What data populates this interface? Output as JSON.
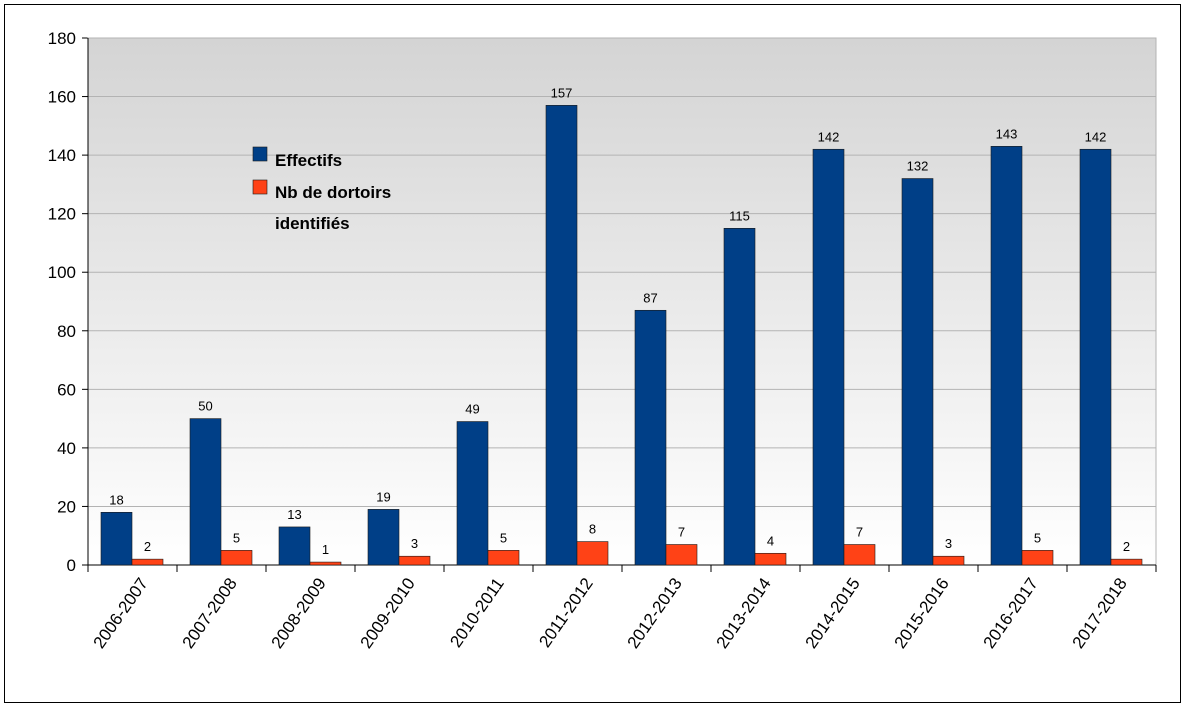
{
  "chart_data": {
    "type": "bar",
    "categories": [
      "2006-2007",
      "2007-2008",
      "2008-2009",
      "2009-2010",
      "2010-2011",
      "2011-2012",
      "2012-2013",
      "2013-2014",
      "2014-2015",
      "2015-2016",
      "2016-2017",
      "2017-2018"
    ],
    "series": [
      {
        "name": "Effectifs",
        "values": [
          18,
          50,
          13,
          19,
          49,
          157,
          87,
          115,
          142,
          132,
          143,
          142
        ],
        "color": "#003f87"
      },
      {
        "name": "Nb de dortoirs identifiés",
        "values": [
          2,
          5,
          1,
          3,
          5,
          8,
          7,
          4,
          7,
          3,
          5,
          2
        ],
        "color": "#ff4216"
      }
    ],
    "yticks": [
      0,
      20,
      40,
      60,
      80,
      100,
      120,
      140,
      160,
      180
    ],
    "ylim": [
      0,
      180
    ],
    "title": "",
    "xlabel": "",
    "ylabel": "",
    "grid": true,
    "legend_position": "top-left inside plot",
    "legend_lines": [
      [
        "Effectifs"
      ],
      [
        "Nb de dortoirs",
        "identifiés"
      ]
    ]
  }
}
